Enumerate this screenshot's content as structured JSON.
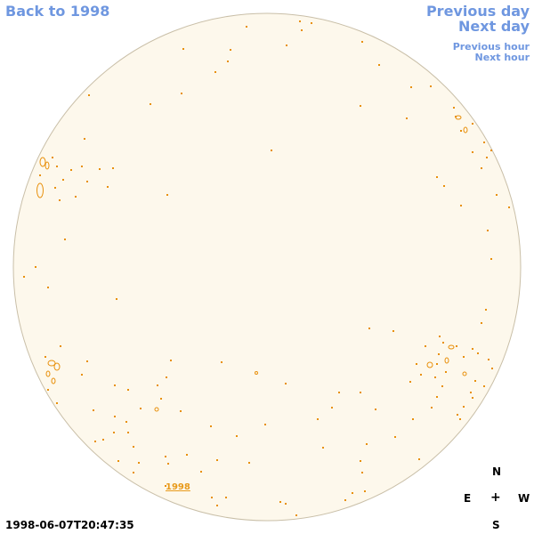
{
  "nav": {
    "back_label": "Back to 1998",
    "previous_day_label": "Previous day",
    "next_day_label": "Next day",
    "previous_hour_label": "Previous hour",
    "next_hour_label": "Next hour"
  },
  "compass": {
    "n": "N",
    "e": "E",
    "center": "+",
    "w": "W",
    "s": "S"
  },
  "timestamp": "1998-06-07T20:47:35",
  "map_label": "1998",
  "colors": {
    "disk_fill": "#fdf8ec",
    "disk_outline": "#c9bfa8",
    "contour": "#e8900c",
    "link": "#6f97e0"
  }
}
